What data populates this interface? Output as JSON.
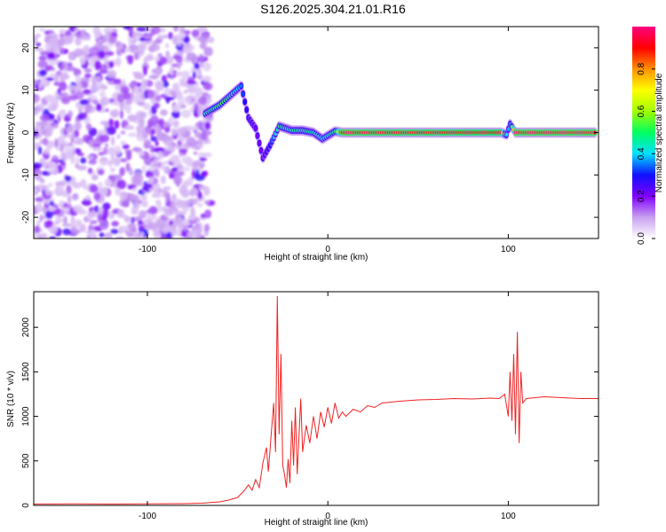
{
  "title": "S126.2025.304.21.01.R16",
  "chart_data": [
    {
      "type": "heatmap",
      "name": "spectrogram",
      "xlabel": "Height of straight line (km)",
      "ylabel": "Frequency (Hz)",
      "xlim": [
        -163,
        150
      ],
      "ylim": [
        -25,
        25
      ],
      "xticks": [
        -100,
        0,
        100
      ],
      "xtick_labels": [
        "-100",
        "0",
        "100"
      ],
      "yticks": [
        -20,
        -10,
        0,
        10,
        20
      ],
      "ytick_labels": [
        "-20",
        "-10",
        "0",
        "10",
        "20"
      ],
      "noise_region_x": [
        -163,
        -65
      ],
      "ridge": [
        {
          "x": -68,
          "y": 4.5,
          "amp": 0.45
        },
        {
          "x": -64,
          "y": 5.5,
          "amp": 0.5
        },
        {
          "x": -60,
          "y": 6.5,
          "amp": 0.55
        },
        {
          "x": -56,
          "y": 8,
          "amp": 0.5
        },
        {
          "x": -52,
          "y": 9.5,
          "amp": 0.45
        },
        {
          "x": -48,
          "y": 11,
          "amp": 0.35
        },
        {
          "x": -44,
          "y": 3.5,
          "amp": 0.25
        },
        {
          "x": -40,
          "y": 1,
          "amp": 0.2
        },
        {
          "x": -36,
          "y": -6,
          "amp": 0.2
        },
        {
          "x": -32,
          "y": -3,
          "amp": 0.3
        },
        {
          "x": -27,
          "y": 1.5,
          "amp": 0.5
        },
        {
          "x": -20,
          "y": 0.5,
          "amp": 0.45
        },
        {
          "x": -14,
          "y": 0.5,
          "amp": 0.5
        },
        {
          "x": -8,
          "y": 0,
          "amp": 0.45
        },
        {
          "x": -3,
          "y": -1.5,
          "amp": 0.4
        },
        {
          "x": 4,
          "y": 0.3,
          "amp": 0.5
        },
        {
          "x": 8,
          "y": 0,
          "amp": 0.95
        },
        {
          "x": 96,
          "y": 0,
          "amp": 0.9
        },
        {
          "x": 99,
          "y": -0.5,
          "amp": 0.4
        },
        {
          "x": 101,
          "y": 2,
          "amp": 0.35
        },
        {
          "x": 104,
          "y": 0,
          "amp": 0.95
        },
        {
          "x": 149,
          "y": 0,
          "amp": 0.95
        }
      ],
      "colorbar": {
        "label": "Normalized spectral amplitude",
        "range": [
          0,
          1
        ],
        "ticks": [
          0.0,
          0.2,
          0.4,
          0.6,
          0.8
        ],
        "tick_labels": [
          "0.0",
          "0.2",
          "0.4",
          "0.6",
          "0.8"
        ],
        "colors": [
          "#ffffff",
          "#c8a0f0",
          "#8000ff",
          "#1010ff",
          "#00e0ff",
          "#00ff60",
          "#a0ff00",
          "#ffff00",
          "#ff9000",
          "#ff0000",
          "#ff0080"
        ]
      }
    },
    {
      "type": "line",
      "name": "snr",
      "xlabel": "Height of straight line (km)",
      "ylabel": "SNR (10 * v/v)",
      "xlim": [
        -163,
        150
      ],
      "ylim": [
        0,
        2400
      ],
      "xticks": [
        -100,
        0,
        100
      ],
      "xtick_labels": [
        "-100",
        "0",
        "100"
      ],
      "yticks": [
        0,
        500,
        1000,
        1500,
        2000
      ],
      "ytick_labels": [
        "0",
        "500",
        "1000",
        "1500",
        "2000"
      ],
      "color": "#ee2222",
      "series": [
        {
          "name": "SNR",
          "points": [
            [
              -163,
              15
            ],
            [
              -140,
              18
            ],
            [
              -120,
              15
            ],
            [
              -100,
              18
            ],
            [
              -80,
              20
            ],
            [
              -70,
              25
            ],
            [
              -60,
              40
            ],
            [
              -55,
              60
            ],
            [
              -50,
              90
            ],
            [
              -47,
              150
            ],
            [
              -44,
              230
            ],
            [
              -42,
              170
            ],
            [
              -40,
              290
            ],
            [
              -38,
              200
            ],
            [
              -36,
              480
            ],
            [
              -34,
              650
            ],
            [
              -33,
              380
            ],
            [
              -31,
              900
            ],
            [
              -30,
              1150
            ],
            [
              -29,
              600
            ],
            [
              -28,
              2350
            ],
            [
              -27,
              800
            ],
            [
              -26,
              1700
            ],
            [
              -25,
              450
            ],
            [
              -24,
              350
            ],
            [
              -23,
              200
            ],
            [
              -22,
              520
            ],
            [
              -21,
              250
            ],
            [
              -20,
              950
            ],
            [
              -19,
              450
            ],
            [
              -18,
              1100
            ],
            [
              -17,
              350
            ],
            [
              -15,
              1200
            ],
            [
              -14,
              600
            ],
            [
              -12,
              900
            ],
            [
              -10,
              700
            ],
            [
              -8,
              1000
            ],
            [
              -6,
              750
            ],
            [
              -4,
              1050
            ],
            [
              -2,
              880
            ],
            [
              0,
              1100
            ],
            [
              2,
              920
            ],
            [
              4,
              1150
            ],
            [
              6,
              980
            ],
            [
              8,
              1050
            ],
            [
              10,
              1000
            ],
            [
              14,
              1080
            ],
            [
              18,
              1050
            ],
            [
              22,
              1120
            ],
            [
              26,
              1100
            ],
            [
              30,
              1150
            ],
            [
              40,
              1170
            ],
            [
              50,
              1185
            ],
            [
              60,
              1190
            ],
            [
              70,
              1200
            ],
            [
              80,
              1195
            ],
            [
              90,
              1205
            ],
            [
              95,
              1200
            ],
            [
              98,
              1250
            ],
            [
              100,
              1000
            ],
            [
              101,
              1500
            ],
            [
              102,
              950
            ],
            [
              103,
              1700
            ],
            [
              104,
              800
            ],
            [
              105,
              1950
            ],
            [
              106,
              700
            ],
            [
              107,
              1500
            ],
            [
              108,
              1150
            ],
            [
              110,
              1200
            ],
            [
              120,
              1220
            ],
            [
              130,
              1210
            ],
            [
              140,
              1200
            ],
            [
              150,
              1200
            ]
          ]
        }
      ]
    }
  ]
}
